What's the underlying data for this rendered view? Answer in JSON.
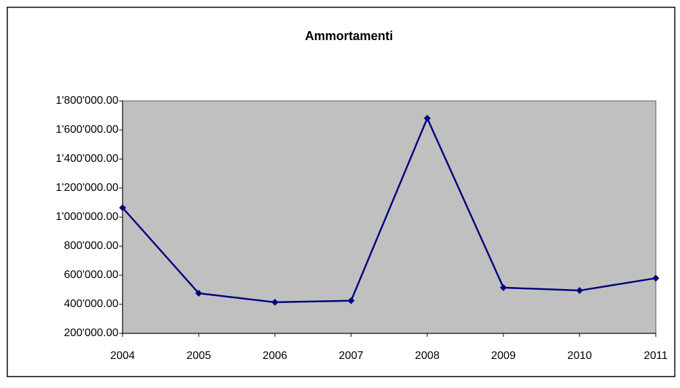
{
  "chart_data": {
    "type": "line",
    "title": "Ammortamenti",
    "categories": [
      "2004",
      "2005",
      "2006",
      "2007",
      "2008",
      "2009",
      "2010",
      "2011"
    ],
    "series": [
      {
        "name": "Ammortamenti",
        "color": "#000080",
        "values": [
          1065000,
          476000,
          414000,
          425000,
          1681000,
          515000,
          495000,
          580000
        ]
      }
    ],
    "ylim": [
      200000,
      1800000
    ],
    "yticks": [
      {
        "value": 200000,
        "label": "200'000.00"
      },
      {
        "value": 400000,
        "label": "400'000.00"
      },
      {
        "value": 600000,
        "label": "600'000.00"
      },
      {
        "value": 800000,
        "label": "800'000.00"
      },
      {
        "value": 1000000,
        "label": "1'000'000.00"
      },
      {
        "value": 1200000,
        "label": "1'200'000.00"
      },
      {
        "value": 1400000,
        "label": "1'400'000.00"
      },
      {
        "value": 1600000,
        "label": "1'600'000.00"
      },
      {
        "value": 1800000,
        "label": "1'800'000.00"
      }
    ],
    "grid": false,
    "plot_background": "#c0c0c0"
  }
}
